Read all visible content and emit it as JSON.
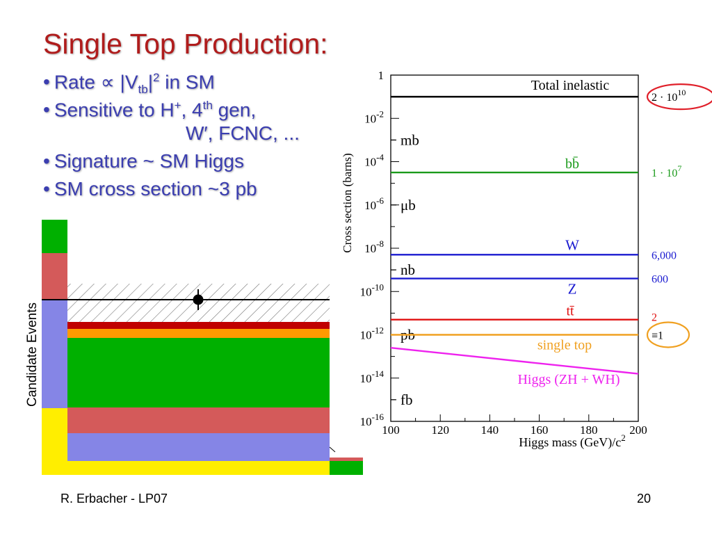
{
  "slide": {
    "title": "Single Top Production:",
    "footer_left": "R. Erbacher - LP07",
    "page_number": "20"
  },
  "bullets": {
    "b1_pre": "Rate ",
    "b1_prop": "∝",
    "b1_mid": " |V",
    "b1_sub": "tb",
    "b1_post": "|",
    "b1_sup": "2",
    "b1_tail": " in SM",
    "b2_pre": "Sensitive to H",
    "b2_sup1": "+",
    "b2_mid": ", 4",
    "b2_sup2": "th",
    "b2_post": " gen,",
    "b2_cont": "W′, FCNC, ...",
    "b3": "Signature ~ SM Higgs",
    "b4": "SM cross section ~3 pb"
  },
  "left_plot": {
    "ylabel": "Candidate Events",
    "colors": {
      "green": "#00b000",
      "red": "#d45a5a",
      "blue": "#8585e6",
      "yellow": "#ffee00",
      "darkred": "#c00000",
      "orange": "#ff9a00"
    }
  },
  "chart_data": {
    "type": "line",
    "ylabel": "Cross section (barns)",
    "xlabel": "Higgs mass (GeV)/c",
    "xlabel_sup": "2",
    "xlim": [
      100,
      200
    ],
    "x_ticks": [
      "100",
      "120",
      "140",
      "160",
      "180",
      "200"
    ],
    "ylim_log10": [
      -16,
      0
    ],
    "y_ticks": [
      {
        "base": "1",
        "exp": ""
      },
      {
        "base": "10",
        "exp": "-2"
      },
      {
        "base": "10",
        "exp": "-4"
      },
      {
        "base": "10",
        "exp": "-6"
      },
      {
        "base": "10",
        "exp": "-8"
      },
      {
        "base": "10",
        "exp": "-10"
      },
      {
        "base": "10",
        "exp": "-12"
      },
      {
        "base": "10",
        "exp": "-14"
      },
      {
        "base": "10",
        "exp": "-16"
      }
    ],
    "unit_labels": [
      {
        "text": "mb",
        "log10": -3
      },
      {
        "text": "μb",
        "log10": -6
      },
      {
        "text": "nb",
        "log10": -9
      },
      {
        "text": "pb",
        "log10": -12
      },
      {
        "text": "fb",
        "log10": -15
      }
    ],
    "series": [
      {
        "name": "Total inelastic",
        "log10_start": -1,
        "log10_end": -1,
        "color": "#000000",
        "ratio": "2 · 10",
        "ratio_sup": "10",
        "ratio_color": "#000000",
        "circled": true,
        "circle_color": "#e0202a"
      },
      {
        "name": "bb̄",
        "log10_start": -4.5,
        "log10_end": -4.5,
        "color": "#1a9a1a",
        "ratio": "1 · 10",
        "ratio_sup": "7",
        "ratio_color": "#1a9a1a",
        "circled": false
      },
      {
        "name": "W",
        "log10_start": -8.3,
        "log10_end": -8.3,
        "color": "#1a1ad0",
        "ratio": "6,000",
        "ratio_sup": "",
        "ratio_color": "#1a1ad0",
        "circled": false
      },
      {
        "name": "Z",
        "log10_start": -9.4,
        "log10_end": -9.4,
        "color": "#1a1ad0",
        "ratio": "600",
        "ratio_sup": "",
        "ratio_color": "#1a1ad0",
        "circled": false
      },
      {
        "name": "tt̄",
        "log10_start": -11.3,
        "log10_end": -11.3,
        "color": "#e01010",
        "ratio": "2",
        "ratio_sup": "",
        "ratio_color": "#e01010",
        "circled": false
      },
      {
        "name": "single top",
        "log10_start": -12.0,
        "log10_end": -12.0,
        "color": "#f0a020",
        "ratio": "≡1",
        "ratio_sup": "",
        "ratio_color": "#000000",
        "circled": true,
        "circle_color": "#f0a020"
      },
      {
        "name": "Higgs (ZH + WH)",
        "log10_start": -12.6,
        "log10_end": -13.8,
        "color": "#ee22ee",
        "ratio": "",
        "ratio_sup": "",
        "ratio_color": "#ee22ee",
        "circled": false
      }
    ]
  }
}
